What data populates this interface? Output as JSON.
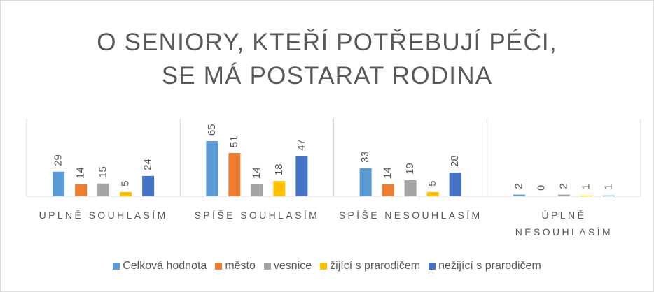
{
  "chart_data": {
    "type": "bar",
    "title": [
      "O SENIORY, KTEŘÍ POTŘEBUJÍ PÉČI,",
      "SE MÁ POSTARAT RODINA"
    ],
    "categories": [
      "UPLNĚ SOUHLASÍM",
      "SPÍŠE SOUHLASÍM",
      "SPÍŠE NESOUHLASÍM",
      "ÚPLNĚ NESOUHLASÍM"
    ],
    "series": [
      {
        "name": "Celková hodnota",
        "color": "#5b9bd5",
        "values": [
          29,
          65,
          33,
          2
        ]
      },
      {
        "name": "město",
        "color": "#ed7d31",
        "values": [
          14,
          51,
          14,
          0
        ]
      },
      {
        "name": "vesnice",
        "color": "#a5a5a5",
        "values": [
          15,
          14,
          19,
          2
        ]
      },
      {
        "name": "žijící s prarodičem",
        "color": "#ffc000",
        "values": [
          5,
          18,
          5,
          1
        ]
      },
      {
        "name": "nežijící s prarodičem",
        "color": "#4472c4",
        "values": [
          24,
          47,
          28,
          1
        ]
      }
    ],
    "ylim": [
      0,
      70
    ],
    "legend": "bottom"
  }
}
